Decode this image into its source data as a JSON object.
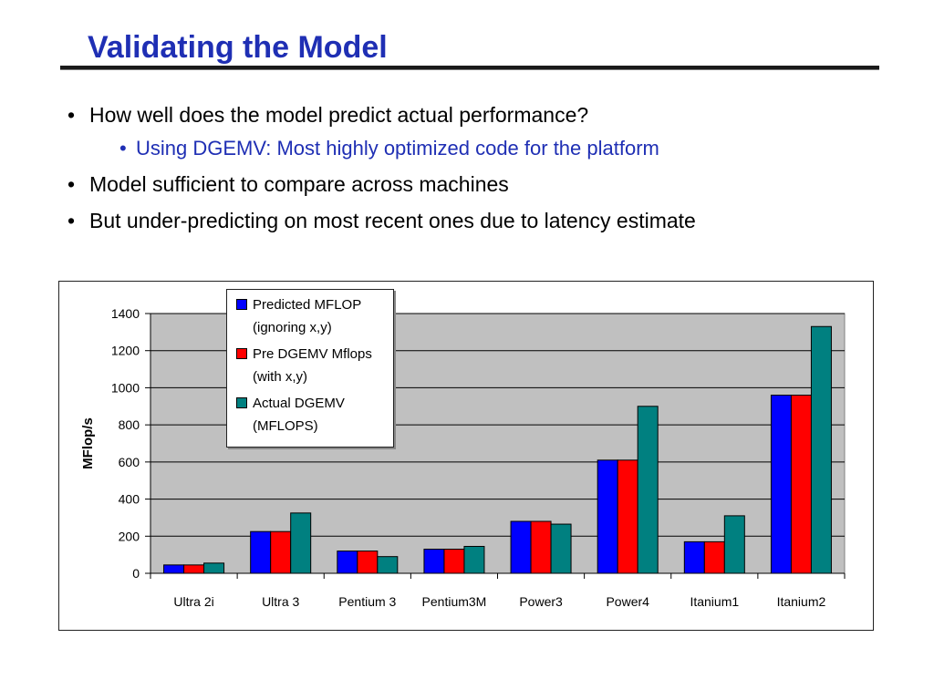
{
  "slide": {
    "title": "Validating the Model",
    "bullets": [
      {
        "text": "How well does the model predict actual performance?",
        "level": 1
      },
      {
        "text": "Using DGEMV: Most highly optimized code for the platform",
        "level": 2
      },
      {
        "text": "Model sufficient to compare across machines",
        "level": 1
      },
      {
        "text": "But under-predicting on most recent ones due to latency estimate",
        "level": 1
      }
    ],
    "bullet_glyph": "•"
  },
  "chart_data": {
    "type": "bar",
    "title": "",
    "xlabel": "",
    "ylabel": "MFlop/s",
    "ylim": [
      0,
      1400
    ],
    "yticks": [
      0,
      200,
      400,
      600,
      800,
      1000,
      1200,
      1400
    ],
    "grid": true,
    "legend_position": "top-left-inside",
    "categories": [
      "Ultra 2i",
      "Ultra 3",
      "Pentium 3",
      "Pentium3M",
      "Power3",
      "Power4",
      "Itanium1",
      "Itanium2"
    ],
    "series": [
      {
        "name": "Predicted MFLOP (ignoring x,y)",
        "name_lines": [
          "Predicted MFLOP",
          "(ignoring x,y)"
        ],
        "color": "#0000ff",
        "values": [
          45,
          225,
          120,
          130,
          280,
          610,
          170,
          960
        ]
      },
      {
        "name": "Pre DGEMV Mflops (with x,y)",
        "name_lines": [
          "Pre DGEMV Mflops",
          "(with x,y)"
        ],
        "color": "#ff0000",
        "values": [
          45,
          225,
          120,
          130,
          280,
          610,
          170,
          960
        ]
      },
      {
        "name": "Actual DGEMV (MFLOPS)",
        "name_lines": [
          "Actual DGEMV",
          "(MFLOPS)"
        ],
        "color": "#008080",
        "values": [
          55,
          325,
          90,
          145,
          265,
          900,
          310,
          1330
        ]
      }
    ],
    "plot_background": "#c0c0c0"
  }
}
